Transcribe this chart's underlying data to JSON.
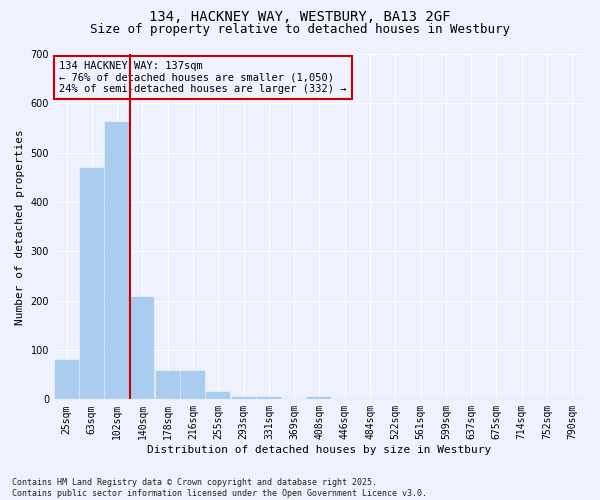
{
  "title1": "134, HACKNEY WAY, WESTBURY, BA13 2GF",
  "title2": "Size of property relative to detached houses in Westbury",
  "xlabel": "Distribution of detached houses by size in Westbury",
  "ylabel": "Number of detached properties",
  "categories": [
    "25sqm",
    "63sqm",
    "102sqm",
    "140sqm",
    "178sqm",
    "216sqm",
    "255sqm",
    "293sqm",
    "331sqm",
    "369sqm",
    "408sqm",
    "446sqm",
    "484sqm",
    "522sqm",
    "561sqm",
    "599sqm",
    "637sqm",
    "675sqm",
    "714sqm",
    "752sqm",
    "790sqm"
  ],
  "values": [
    80,
    468,
    562,
    207,
    57,
    57,
    14,
    5,
    4,
    0,
    5,
    0,
    0,
    0,
    0,
    0,
    0,
    0,
    0,
    0,
    0
  ],
  "bar_color": "#aaccee",
  "bar_edgecolor": "#aaccee",
  "vline_color": "#cc0000",
  "vline_x_index": 2.5,
  "annotation_text": "134 HACKNEY WAY: 137sqm\n← 76% of detached houses are smaller (1,050)\n24% of semi-detached houses are larger (332) →",
  "annotation_box_edgecolor": "#cc0000",
  "annotation_fontsize": 7.5,
  "ylim": [
    0,
    700
  ],
  "yticks": [
    0,
    100,
    200,
    300,
    400,
    500,
    600,
    700
  ],
  "background_color": "#eef2ff",
  "grid_color": "#ffffff",
  "footer": "Contains HM Land Registry data © Crown copyright and database right 2025.\nContains public sector information licensed under the Open Government Licence v3.0.",
  "title_fontsize": 10,
  "subtitle_fontsize": 9,
  "xlabel_fontsize": 8,
  "ylabel_fontsize": 8,
  "tick_fontsize": 7,
  "ytick_fontsize": 7,
  "footer_fontsize": 6
}
